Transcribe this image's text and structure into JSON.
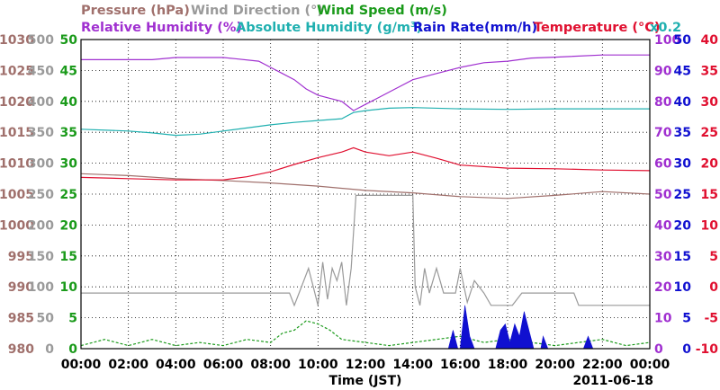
{
  "header": {
    "row1": [
      {
        "text": "Pressure (hPa)",
        "color": "#a0706c"
      },
      {
        "text": "Wind Direction (°)",
        "color": "#9a9a9a"
      },
      {
        "text": "Wind Speed (m/s)",
        "color": "#1a9a1a"
      }
    ],
    "row2": [
      {
        "text": "Relative Humidity (%)",
        "color": "#a030d0"
      },
      {
        "text": "Absolute Humidity (g/m³)",
        "color": "#20b0b0"
      },
      {
        "text": "Rain Rate(mm/h)",
        "color": "#1010d0"
      },
      {
        "text": "Temperature (°C)",
        "color": "#e01030"
      }
    ],
    "multiplier": {
      "text": "x0.2",
      "color": "#20b0b0"
    }
  },
  "chart_data": {
    "type": "line",
    "xlabel": "Time (JST)",
    "date": "2011-06-18",
    "x_ticks": [
      "00:00",
      "02:00",
      "04:00",
      "06:00",
      "08:00",
      "10:00",
      "12:00",
      "14:00",
      "16:00",
      "18:00",
      "20:00",
      "22:00",
      "00:00"
    ],
    "x_range_hours": [
      0,
      24
    ],
    "grid": true,
    "axes": {
      "pressure": {
        "ticks": [
          980,
          985,
          990,
          995,
          1000,
          1005,
          1010,
          1015,
          1020,
          1025,
          1030
        ],
        "range": [
          980,
          1030
        ],
        "color": "#a0706c"
      },
      "wind_direction": {
        "ticks": [
          0,
          50,
          100,
          150,
          200,
          250,
          300,
          350,
          400,
          450,
          500
        ],
        "range": [
          0,
          500
        ],
        "color": "#9a9a9a"
      },
      "wind_speed": {
        "ticks": [
          0,
          5,
          10,
          15,
          20,
          25,
          30,
          35,
          40,
          45,
          50
        ],
        "range": [
          0,
          50
        ],
        "color": "#1a9a1a"
      },
      "relative_humidity": {
        "ticks": [
          0,
          10,
          20,
          30,
          40,
          50,
          60,
          70,
          80,
          90,
          100
        ],
        "range": [
          0,
          100
        ],
        "color": "#a030d0"
      },
      "rain_rate": {
        "ticks": [
          0,
          5,
          10,
          15,
          20,
          25,
          30,
          35,
          40,
          45,
          50
        ],
        "range": [
          0,
          50
        ],
        "color": "#1010d0"
      },
      "temperature": {
        "ticks": [
          -10,
          -5,
          0,
          5,
          10,
          15,
          20,
          25,
          30,
          35,
          40
        ],
        "range": [
          -10,
          40
        ],
        "color": "#e01030"
      }
    },
    "series": [
      {
        "name": "Pressure (hPa)",
        "axis": "pressure",
        "color": "#a0706c",
        "points": [
          [
            0,
            1008.3
          ],
          [
            2,
            1008
          ],
          [
            4,
            1007.5
          ],
          [
            6,
            1007.2
          ],
          [
            8,
            1006.8
          ],
          [
            10,
            1006.3
          ],
          [
            12,
            1005.6
          ],
          [
            14,
            1005.2
          ],
          [
            16,
            1004.6
          ],
          [
            18,
            1004.3
          ],
          [
            20,
            1004.8
          ],
          [
            22,
            1005.4
          ],
          [
            24,
            1005
          ]
        ]
      },
      {
        "name": "Temperature (°C)",
        "axis": "temperature",
        "color": "#e01030",
        "points": [
          [
            0,
            17.7
          ],
          [
            2,
            17.5
          ],
          [
            4,
            17.3
          ],
          [
            6,
            17.3
          ],
          [
            7,
            17.8
          ],
          [
            8,
            18.6
          ],
          [
            9,
            19.8
          ],
          [
            10,
            20.9
          ],
          [
            11,
            21.8
          ],
          [
            11.5,
            22.5
          ],
          [
            12,
            21.8
          ],
          [
            13,
            21.2
          ],
          [
            14,
            21.8
          ],
          [
            15,
            20.8
          ],
          [
            16,
            19.7
          ],
          [
            18,
            19.2
          ],
          [
            20,
            19.1
          ],
          [
            22,
            18.9
          ],
          [
            24,
            18.8
          ]
        ]
      },
      {
        "name": "Relative Humidity (%)",
        "axis": "relative_humidity",
        "color": "#a030d0",
        "points": [
          [
            0,
            93.5
          ],
          [
            3,
            93.5
          ],
          [
            4,
            94.2
          ],
          [
            6,
            94.2
          ],
          [
            6.5,
            93.8
          ],
          [
            7.5,
            93
          ],
          [
            8,
            91
          ],
          [
            8.5,
            89
          ],
          [
            9,
            87
          ],
          [
            9.5,
            84
          ],
          [
            10,
            82
          ],
          [
            10.5,
            81
          ],
          [
            11,
            80
          ],
          [
            11.5,
            77
          ],
          [
            12,
            79
          ],
          [
            12.5,
            81
          ],
          [
            13,
            83
          ],
          [
            13.5,
            85
          ],
          [
            14,
            87
          ],
          [
            15,
            89
          ],
          [
            16,
            91
          ],
          [
            17,
            92.5
          ],
          [
            18,
            93
          ],
          [
            19,
            94
          ],
          [
            20,
            94.3
          ],
          [
            22,
            95
          ],
          [
            24,
            95
          ]
        ]
      },
      {
        "name": "Absolute Humidity (g/m³)",
        "axis": "wind_direction",
        "color": "#20b0b0",
        "points": [
          [
            0,
            355
          ],
          [
            2,
            352
          ],
          [
            3,
            349
          ],
          [
            4,
            345
          ],
          [
            5,
            347
          ],
          [
            6,
            352
          ],
          [
            7,
            357
          ],
          [
            8,
            362
          ],
          [
            9,
            366
          ],
          [
            10,
            369
          ],
          [
            11,
            372
          ],
          [
            11.5,
            382
          ],
          [
            12,
            385
          ],
          [
            13,
            389
          ],
          [
            14,
            390
          ],
          [
            16,
            388
          ],
          [
            18,
            387
          ],
          [
            20,
            388
          ],
          [
            22,
            388
          ],
          [
            24,
            388
          ]
        ]
      },
      {
        "name": "Wind Direction (°)",
        "axis": "wind_direction",
        "color": "#9a9a9a",
        "points": [
          [
            0,
            90
          ],
          [
            8.8,
            90
          ],
          [
            9,
            70
          ],
          [
            9.2,
            90
          ],
          [
            9.6,
            130
          ],
          [
            9.8,
            100
          ],
          [
            10,
            70
          ],
          [
            10.2,
            140
          ],
          [
            10.4,
            80
          ],
          [
            10.6,
            130
          ],
          [
            10.8,
            110
          ],
          [
            11,
            140
          ],
          [
            11.2,
            70
          ],
          [
            11.4,
            130
          ],
          [
            11.6,
            248
          ],
          [
            14,
            248
          ],
          [
            14.1,
            100
          ],
          [
            14.3,
            70
          ],
          [
            14.5,
            130
          ],
          [
            14.7,
            90
          ],
          [
            15,
            130
          ],
          [
            15.3,
            90
          ],
          [
            15.8,
            90
          ],
          [
            16,
            130
          ],
          [
            16.3,
            75
          ],
          [
            16.6,
            110
          ],
          [
            17,
            90
          ],
          [
            17.3,
            70
          ],
          [
            18.2,
            70
          ],
          [
            18.6,
            90
          ],
          [
            20.8,
            90
          ],
          [
            21,
            70
          ],
          [
            24,
            70
          ]
        ]
      },
      {
        "name": "Wind Speed (m/s)",
        "axis": "wind_speed",
        "color": "#1a9a1a",
        "style": "dashed",
        "points": [
          [
            0,
            0.5
          ],
          [
            1,
            1.5
          ],
          [
            2,
            0.5
          ],
          [
            3,
            1.5
          ],
          [
            4,
            0.5
          ],
          [
            5,
            1
          ],
          [
            6,
            0.5
          ],
          [
            7,
            1.5
          ],
          [
            8,
            1
          ],
          [
            8.5,
            2.5
          ],
          [
            9,
            3
          ],
          [
            9.5,
            4.5
          ],
          [
            10,
            4
          ],
          [
            10.5,
            3
          ],
          [
            11,
            1.5
          ],
          [
            12,
            1
          ],
          [
            13,
            0.5
          ],
          [
            14,
            1
          ],
          [
            15,
            1.5
          ],
          [
            16,
            2
          ],
          [
            17,
            1
          ],
          [
            18,
            1.5
          ],
          [
            19,
            1
          ],
          [
            20,
            0.5
          ],
          [
            21,
            1
          ],
          [
            22,
            1.5
          ],
          [
            23,
            0.5
          ],
          [
            24,
            1
          ]
        ]
      },
      {
        "name": "Rain Rate(mm/h)",
        "axis": "rain_rate",
        "color": "#1010d0",
        "style": "filled",
        "points": [
          [
            15.5,
            0
          ],
          [
            15.7,
            3
          ],
          [
            15.9,
            0
          ],
          [
            16,
            0
          ],
          [
            16.2,
            7
          ],
          [
            16.4,
            2
          ],
          [
            16.6,
            0
          ],
          [
            17.5,
            0
          ],
          [
            17.7,
            3
          ],
          [
            17.9,
            4
          ],
          [
            18.1,
            1
          ],
          [
            18.3,
            4
          ],
          [
            18.5,
            2
          ],
          [
            18.7,
            6
          ],
          [
            18.9,
            3
          ],
          [
            19.1,
            0
          ],
          [
            19.4,
            0
          ],
          [
            19.5,
            2
          ],
          [
            19.7,
            0
          ],
          [
            21.2,
            0
          ],
          [
            21.4,
            2
          ],
          [
            21.6,
            0
          ]
        ]
      }
    ]
  }
}
